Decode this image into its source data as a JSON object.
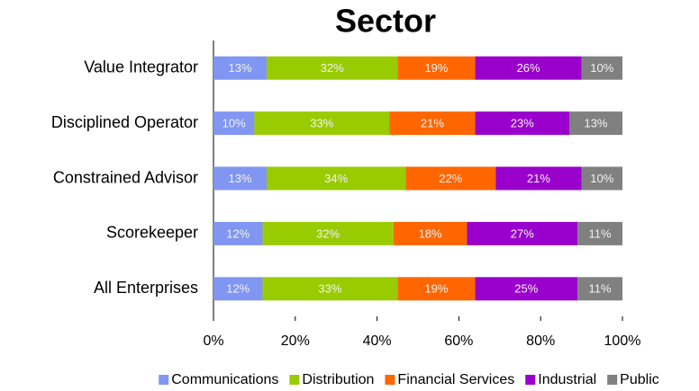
{
  "chart_data": {
    "type": "stacked_barh",
    "title": "Sector",
    "categories": [
      "Value Integrator",
      "Disciplined Operator",
      "Constrained Advisor",
      "Scorekeeper",
      "All Enterprises"
    ],
    "series": [
      {
        "name": "Communications",
        "color": "#8096f2",
        "values": [
          13,
          10,
          13,
          12,
          12
        ],
        "value_labels": [
          "13%",
          "10%",
          "13%",
          "12%",
          "12%"
        ]
      },
      {
        "name": "Distribution",
        "color": "#99cc00",
        "values": [
          32,
          33,
          34,
          32,
          33
        ],
        "value_labels": [
          "32%",
          "33%",
          "34%",
          "32%",
          "33%"
        ]
      },
      {
        "name": "Financial Services",
        "color": "#ff6600",
        "values": [
          19,
          21,
          22,
          18,
          19
        ],
        "value_labels": [
          "19%",
          "21%",
          "22%",
          "18%",
          "19%"
        ]
      },
      {
        "name": "Industrial",
        "color": "#9900cc",
        "values": [
          26,
          23,
          21,
          27,
          25
        ],
        "value_labels": [
          "26%",
          "23%",
          "21%",
          "27%",
          "25%"
        ]
      },
      {
        "name": "Public",
        "color": "#808080",
        "values": [
          10,
          13,
          10,
          11,
          11
        ],
        "value_labels": [
          "10%",
          "13%",
          "10%",
          "11%",
          "11%"
        ]
      }
    ],
    "xlim": [
      0,
      100
    ],
    "xticks": [
      {
        "value": 0,
        "label": "0%"
      },
      {
        "value": 20,
        "label": "20%"
      },
      {
        "value": 40,
        "label": "40%"
      },
      {
        "value": 60,
        "label": "60%"
      },
      {
        "value": 80,
        "label": "80%"
      },
      {
        "value": 100,
        "label": "100%"
      }
    ],
    "grid": false,
    "legend": "bottom"
  }
}
